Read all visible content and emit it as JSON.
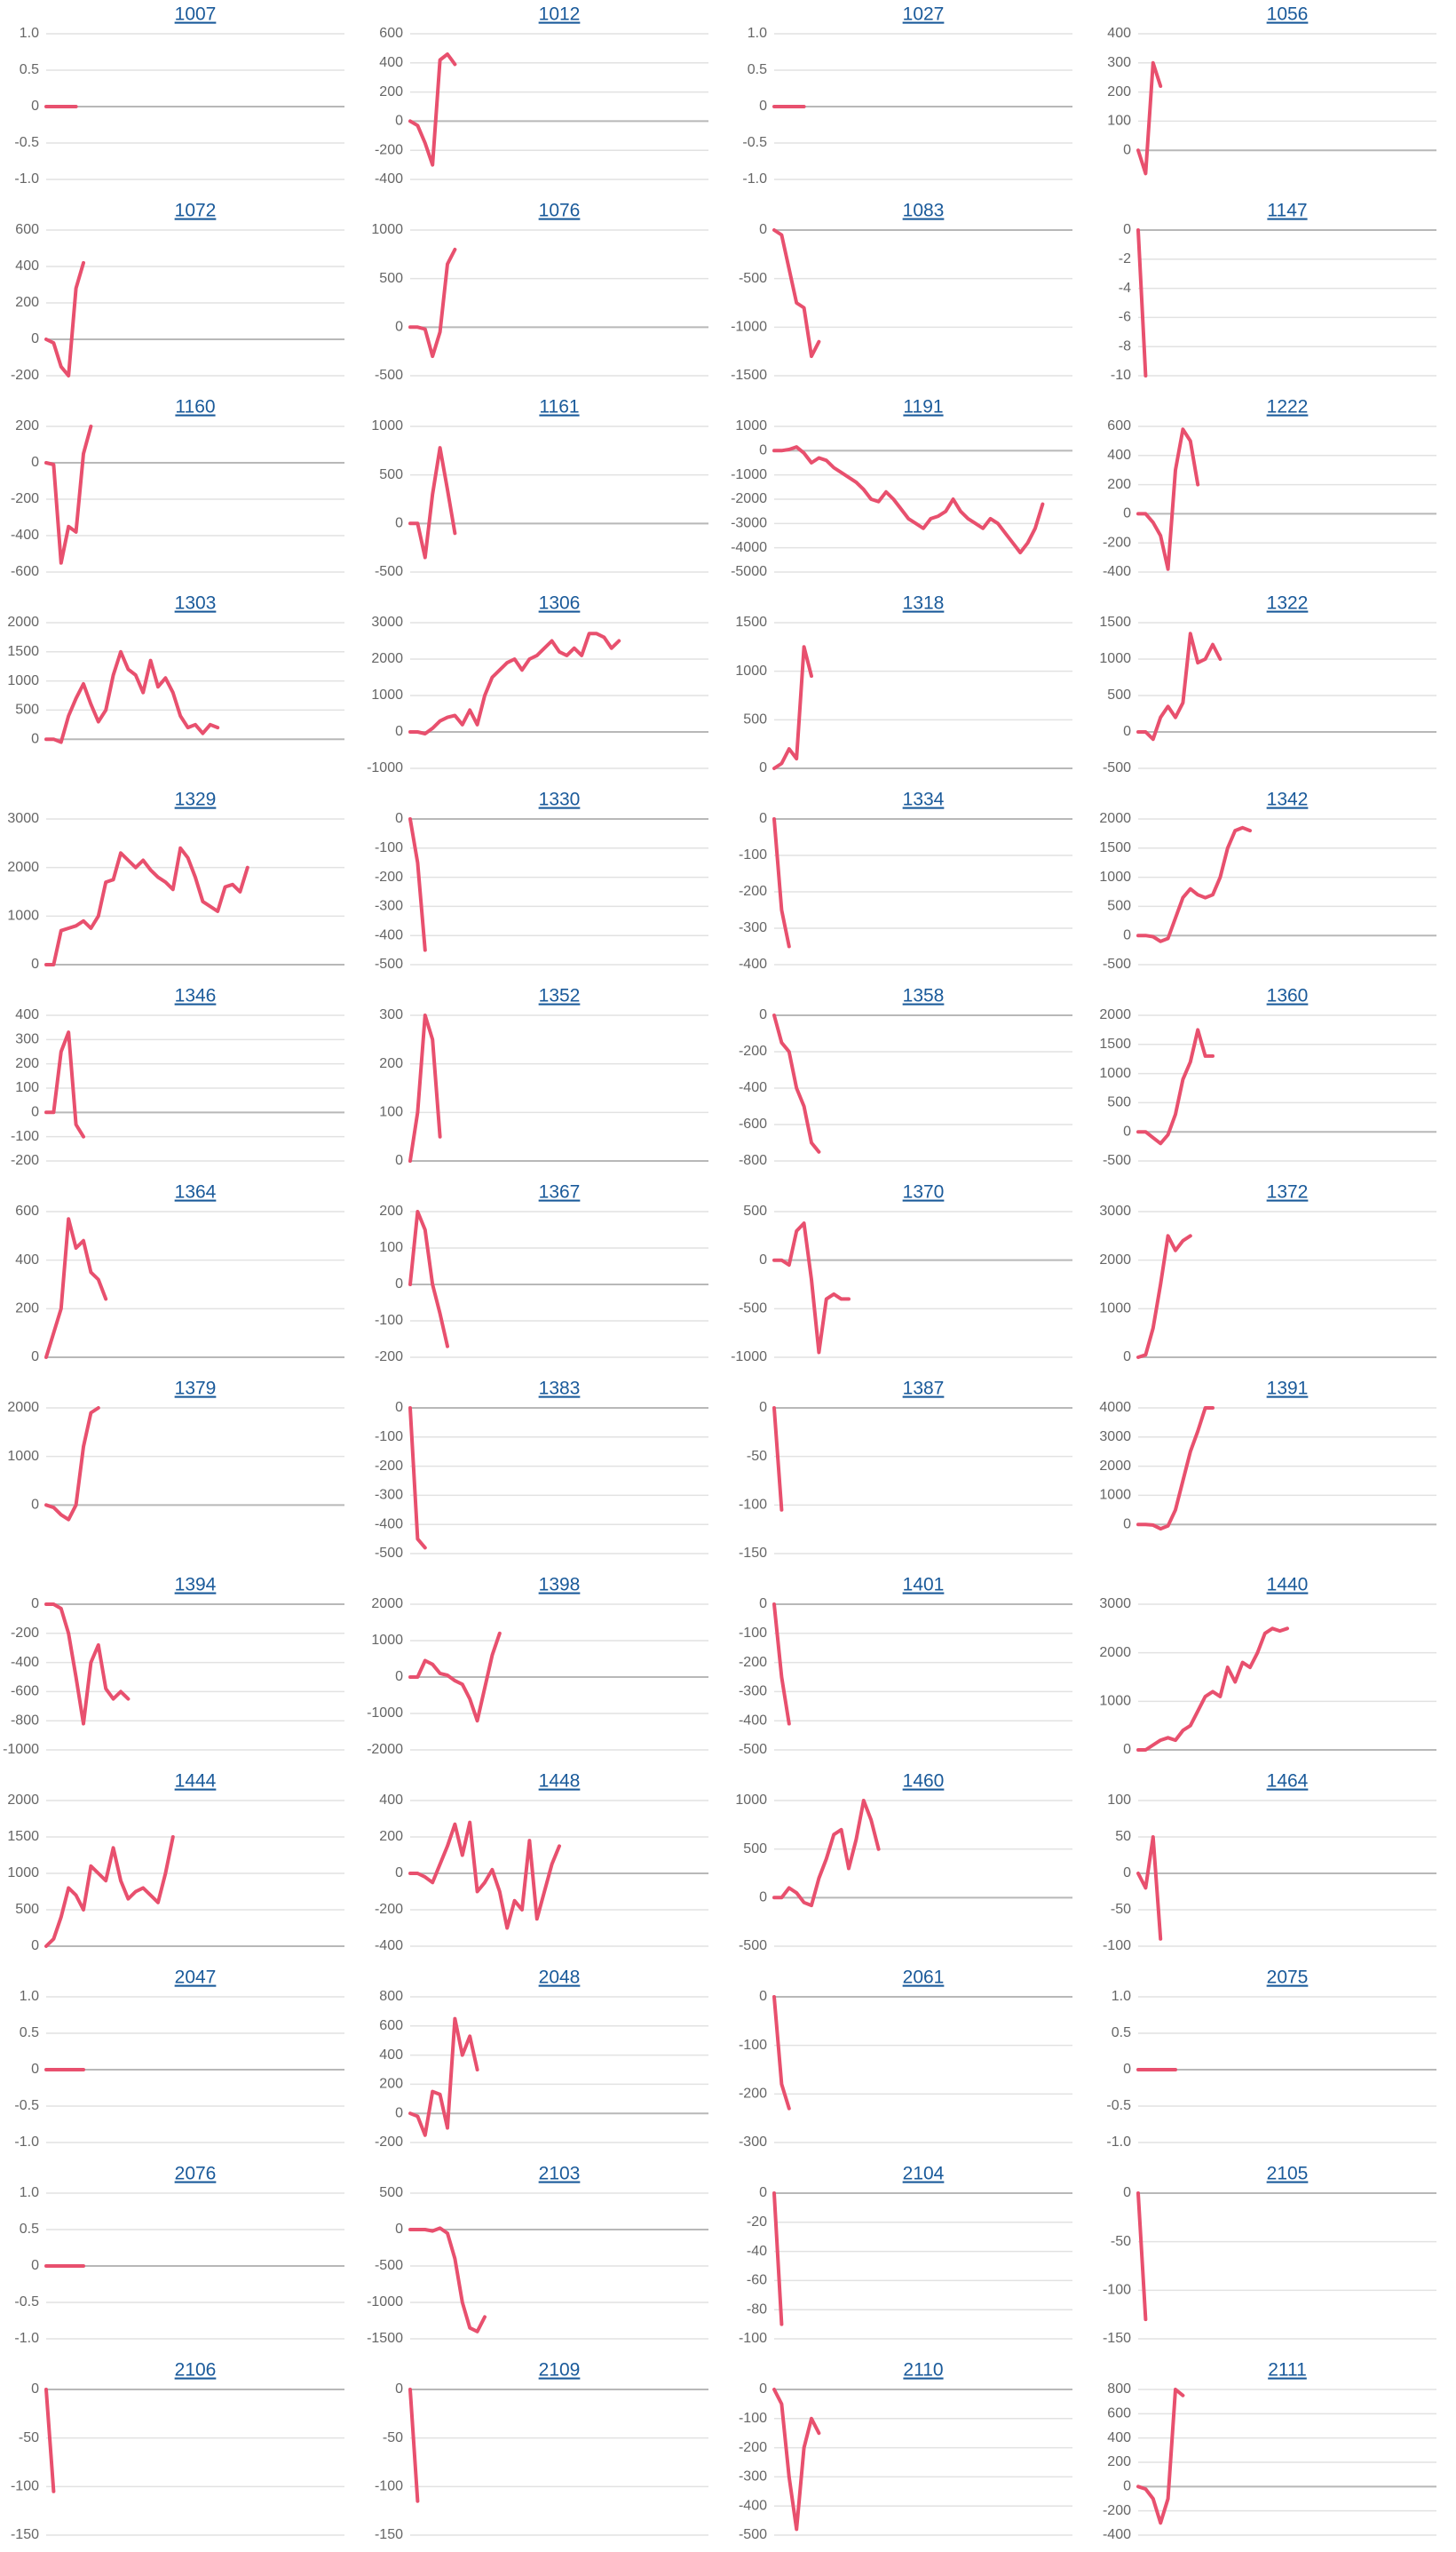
{
  "chart_data": [
    {
      "type": "line",
      "title": "1007",
      "color": "#e8506e",
      "ylim": [
        -1,
        1
      ],
      "yticks": [
        {
          "value": -1,
          "label": "-1.0"
        },
        -0.5,
        0,
        0.5,
        {
          "value": 1,
          "label": "1.0"
        }
      ],
      "values": [
        0,
        0,
        0,
        0,
        0
      ]
    },
    {
      "type": "line",
      "title": "1012",
      "color": "#e8506e",
      "ylim": [
        -400,
        600
      ],
      "yticks": [
        -400,
        -200,
        0,
        200,
        400,
        600
      ],
      "values": [
        0,
        -30,
        -150,
        -300,
        420,
        460,
        390
      ]
    },
    {
      "type": "line",
      "title": "1027",
      "color": "#e8506e",
      "ylim": [
        -1,
        1
      ],
      "yticks": [
        {
          "value": -1,
          "label": "-1.0"
        },
        -0.5,
        0,
        0.5,
        {
          "value": 1,
          "label": "1.0"
        }
      ],
      "values": [
        0,
        0,
        0,
        0,
        0
      ]
    },
    {
      "type": "line",
      "title": "1056",
      "color": "#e8506e",
      "ylim": [
        -100,
        400
      ],
      "yticks": [
        0,
        100,
        200,
        300,
        400
      ],
      "values": [
        0,
        -80,
        300,
        220
      ]
    },
    {
      "type": "line",
      "title": "1072",
      "color": "#e8506e",
      "ylim": [
        -200,
        600
      ],
      "yticks": [
        -200,
        0,
        200,
        400,
        600
      ],
      "values": [
        0,
        -20,
        -150,
        -200,
        280,
        420
      ]
    },
    {
      "type": "line",
      "title": "1076",
      "color": "#e8506e",
      "ylim": [
        -500,
        1000
      ],
      "yticks": [
        -500,
        0,
        500,
        1000
      ],
      "values": [
        0,
        0,
        -20,
        -300,
        -50,
        650,
        800
      ]
    },
    {
      "type": "line",
      "title": "1083",
      "color": "#e8506e",
      "ylim": [
        -1500,
        0
      ],
      "yticks": [
        -1500,
        -1000,
        -500,
        0
      ],
      "values": [
        0,
        -50,
        -400,
        -750,
        -800,
        -1300,
        -1150
      ]
    },
    {
      "type": "line",
      "title": "1147",
      "color": "#e8506e",
      "ylim": [
        -10,
        0
      ],
      "yticks": [
        -10,
        -8,
        -6,
        -4,
        -2,
        0
      ],
      "values": [
        0,
        -10
      ]
    },
    {
      "type": "line",
      "title": "1160",
      "color": "#e8506e",
      "ylim": [
        -600,
        200
      ],
      "yticks": [
        -600,
        -400,
        -200,
        0,
        200
      ],
      "values": [
        0,
        -10,
        -550,
        -350,
        -380,
        50,
        200
      ]
    },
    {
      "type": "line",
      "title": "1161",
      "color": "#e8506e",
      "ylim": [
        -500,
        1000
      ],
      "yticks": [
        -500,
        0,
        500,
        1000
      ],
      "values": [
        0,
        0,
        -350,
        300,
        780,
        350,
        -100
      ]
    },
    {
      "type": "line",
      "title": "1191",
      "color": "#e8506e",
      "ylim": [
        -5000,
        1000
      ],
      "yticks": [
        -5000,
        -4000,
        -3000,
        -2000,
        -1000,
        0,
        1000
      ],
      "values": [
        0,
        0,
        50,
        150,
        -100,
        -500,
        -300,
        -400,
        -700,
        -900,
        -1100,
        -1300,
        -1600,
        -2000,
        -2100,
        -1700,
        -2000,
        -2400,
        -2800,
        -3000,
        -3200,
        -2800,
        -2700,
        -2500,
        -2000,
        -2500,
        -2800,
        -3000,
        -3200,
        -2800,
        -3000,
        -3400,
        -3800,
        -4200,
        -3800,
        -3200,
        -2200
      ]
    },
    {
      "type": "line",
      "title": "1222",
      "color": "#e8506e",
      "ylim": [
        -400,
        600
      ],
      "yticks": [
        -400,
        -200,
        0,
        200,
        400,
        600
      ],
      "values": [
        0,
        0,
        -60,
        -150,
        -380,
        300,
        580,
        500,
        200
      ]
    },
    {
      "type": "line",
      "title": "1303",
      "color": "#e8506e",
      "ylim": [
        -500,
        2000
      ],
      "yticks": [
        0,
        500,
        1000,
        1500,
        2000
      ],
      "values": [
        0,
        0,
        -50,
        400,
        700,
        950,
        600,
        300,
        500,
        1100,
        1500,
        1200,
        1100,
        800,
        1350,
        900,
        1050,
        800,
        400,
        200,
        250,
        100,
        250,
        200
      ]
    },
    {
      "type": "line",
      "title": "1306",
      "color": "#e8506e",
      "ylim": [
        -1000,
        3000
      ],
      "yticks": [
        -1000,
        0,
        1000,
        2000,
        3000
      ],
      "values": [
        0,
        0,
        -50,
        100,
        300,
        400,
        450,
        200,
        600,
        200,
        1000,
        1500,
        1700,
        1900,
        2000,
        1700,
        2000,
        2100,
        2300,
        2500,
        2200,
        2100,
        2300,
        2100,
        2700,
        2700,
        2600,
        2300,
        2500
      ]
    },
    {
      "type": "line",
      "title": "1318",
      "color": "#e8506e",
      "ylim": [
        0,
        1500
      ],
      "yticks": [
        0,
        500,
        1000,
        1500
      ],
      "values": [
        0,
        50,
        200,
        100,
        1250,
        950
      ]
    },
    {
      "type": "line",
      "title": "1322",
      "color": "#e8506e",
      "ylim": [
        -500,
        1500
      ],
      "yticks": [
        -500,
        0,
        500,
        1000,
        1500
      ],
      "values": [
        0,
        0,
        -100,
        200,
        350,
        200,
        400,
        1350,
        950,
        1000,
        1200,
        1000
      ]
    },
    {
      "type": "line",
      "title": "1329",
      "color": "#e8506e",
      "ylim": [
        0,
        3000
      ],
      "yticks": [
        0,
        1000,
        2000,
        3000
      ],
      "values": [
        0,
        0,
        700,
        750,
        800,
        900,
        750,
        1000,
        1700,
        1750,
        2300,
        2150,
        2000,
        2150,
        1950,
        1800,
        1700,
        1550,
        2400,
        2200,
        1800,
        1300,
        1200,
        1100,
        1600,
        1650,
        1500,
        2000
      ]
    },
    {
      "type": "line",
      "title": "1330",
      "color": "#e8506e",
      "ylim": [
        -500,
        0
      ],
      "yticks": [
        -500,
        -400,
        -300,
        -200,
        -100,
        0
      ],
      "values": [
        0,
        -150,
        -450
      ]
    },
    {
      "type": "line",
      "title": "1334",
      "color": "#e8506e",
      "ylim": [
        -400,
        0
      ],
      "yticks": [
        -400,
        -300,
        -200,
        -100,
        0
      ],
      "values": [
        0,
        -250,
        -350
      ]
    },
    {
      "type": "line",
      "title": "1342",
      "color": "#e8506e",
      "ylim": [
        -500,
        2000
      ],
      "yticks": [
        -500,
        0,
        500,
        1000,
        1500,
        2000
      ],
      "values": [
        0,
        0,
        -20,
        -100,
        -50,
        300,
        650,
        800,
        700,
        650,
        700,
        1000,
        1500,
        1800,
        1850,
        1800
      ]
    },
    {
      "type": "line",
      "title": "1346",
      "color": "#e8506e",
      "ylim": [
        -200,
        400
      ],
      "yticks": [
        -200,
        -100,
        0,
        100,
        200,
        300,
        400
      ],
      "values": [
        0,
        0,
        250,
        330,
        -50,
        -100
      ]
    },
    {
      "type": "line",
      "title": "1352",
      "color": "#e8506e",
      "ylim": [
        0,
        300
      ],
      "yticks": [
        0,
        100,
        200,
        300
      ],
      "values": [
        0,
        100,
        300,
        250,
        50
      ]
    },
    {
      "type": "line",
      "title": "1358",
      "color": "#e8506e",
      "ylim": [
        -800,
        0
      ],
      "yticks": [
        -800,
        -600,
        -400,
        -200,
        0
      ],
      "values": [
        0,
        -150,
        -200,
        -400,
        -500,
        -700,
        -750
      ]
    },
    {
      "type": "line",
      "title": "1360",
      "color": "#e8506e",
      "ylim": [
        -500,
        2000
      ],
      "yticks": [
        -500,
        0,
        500,
        1000,
        1500,
        2000
      ],
      "values": [
        0,
        0,
        -100,
        -200,
        -50,
        300,
        900,
        1200,
        1750,
        1300,
        1300
      ]
    },
    {
      "type": "line",
      "title": "1364",
      "color": "#e8506e",
      "ylim": [
        0,
        600
      ],
      "yticks": [
        0,
        200,
        400,
        600
      ],
      "values": [
        0,
        100,
        200,
        570,
        450,
        480,
        350,
        320,
        240
      ]
    },
    {
      "type": "line",
      "title": "1367",
      "color": "#e8506e",
      "ylim": [
        -200,
        200
      ],
      "yticks": [
        -200,
        -100,
        0,
        100,
        200
      ],
      "values": [
        0,
        200,
        150,
        0,
        -80,
        -170
      ]
    },
    {
      "type": "line",
      "title": "1370",
      "color": "#e8506e",
      "ylim": [
        -1000,
        500
      ],
      "yticks": [
        -1000,
        -500,
        0,
        500
      ],
      "values": [
        0,
        0,
        -50,
        300,
        380,
        -200,
        -950,
        -400,
        -350,
        -400,
        -400
      ]
    },
    {
      "type": "line",
      "title": "1372",
      "color": "#e8506e",
      "ylim": [
        0,
        3000
      ],
      "yticks": [
        0,
        1000,
        2000,
        3000
      ],
      "values": [
        0,
        50,
        600,
        1500,
        2500,
        2200,
        2400,
        2500
      ]
    },
    {
      "type": "line",
      "title": "1379",
      "color": "#e8506e",
      "ylim": [
        -1000,
        2000
      ],
      "yticks": [
        0,
        1000,
        2000
      ],
      "values": [
        0,
        -50,
        -200,
        -300,
        0,
        1200,
        1900,
        2000
      ]
    },
    {
      "type": "line",
      "title": "1383",
      "color": "#e8506e",
      "ylim": [
        -500,
        0
      ],
      "yticks": [
        -500,
        -400,
        -300,
        -200,
        -100,
        0
      ],
      "values": [
        0,
        -450,
        -480
      ]
    },
    {
      "type": "line",
      "title": "1387",
      "color": "#e8506e",
      "ylim": [
        -150,
        0
      ],
      "yticks": [
        -150,
        -100,
        -50,
        0
      ],
      "values": [
        0,
        -105
      ]
    },
    {
      "type": "line",
      "title": "1391",
      "color": "#e8506e",
      "ylim": [
        -1000,
        4000
      ],
      "yticks": [
        0,
        1000,
        2000,
        3000,
        4000
      ],
      "values": [
        0,
        0,
        -20,
        -150,
        -50,
        500,
        1500,
        2500,
        3200,
        4000,
        4000
      ]
    },
    {
      "type": "line",
      "title": "1394",
      "color": "#e8506e",
      "ylim": [
        -1000,
        0
      ],
      "yticks": [
        -1000,
        -800,
        -600,
        -400,
        -200,
        0
      ],
      "values": [
        0,
        0,
        -30,
        -200,
        -500,
        -820,
        -400,
        -280,
        -580,
        -650,
        -600,
        -650
      ]
    },
    {
      "type": "line",
      "title": "1398",
      "color": "#e8506e",
      "ylim": [
        -2000,
        2000
      ],
      "yticks": [
        -2000,
        -1000,
        0,
        1000,
        2000
      ],
      "values": [
        0,
        0,
        450,
        350,
        100,
        50,
        -100,
        -200,
        -600,
        -1200,
        -300,
        600,
        1200
      ]
    },
    {
      "type": "line",
      "title": "1401",
      "color": "#e8506e",
      "ylim": [
        -500,
        0
      ],
      "yticks": [
        -500,
        -400,
        -300,
        -200,
        -100,
        0
      ],
      "values": [
        0,
        -250,
        -410
      ]
    },
    {
      "type": "line",
      "title": "1440",
      "color": "#e8506e",
      "ylim": [
        0,
        3000
      ],
      "yticks": [
        0,
        1000,
        2000,
        3000
      ],
      "values": [
        0,
        0,
        100,
        200,
        250,
        200,
        400,
        500,
        800,
        1100,
        1200,
        1100,
        1700,
        1400,
        1800,
        1700,
        2000,
        2400,
        2500,
        2450,
        2500
      ]
    },
    {
      "type": "line",
      "title": "1444",
      "color": "#e8506e",
      "ylim": [
        0,
        2000
      ],
      "yticks": [
        0,
        500,
        1000,
        1500,
        2000
      ],
      "values": [
        0,
        100,
        400,
        800,
        700,
        500,
        1100,
        1000,
        900,
        1350,
        900,
        650,
        750,
        800,
        700,
        600,
        1000,
        1500
      ]
    },
    {
      "type": "line",
      "title": "1448",
      "color": "#e8506e",
      "ylim": [
        -400,
        400
      ],
      "yticks": [
        -400,
        -200,
        0,
        200,
        400
      ],
      "values": [
        0,
        0,
        -20,
        -50,
        50,
        150,
        270,
        100,
        280,
        -100,
        -50,
        20,
        -100,
        -300,
        -150,
        -200,
        180,
        -250,
        -100,
        50,
        150
      ]
    },
    {
      "type": "line",
      "title": "1460",
      "color": "#e8506e",
      "ylim": [
        -500,
        1000
      ],
      "yticks": [
        -500,
        0,
        500,
        1000
      ],
      "values": [
        0,
        0,
        100,
        50,
        -50,
        -80,
        200,
        400,
        650,
        700,
        300,
        600,
        1000,
        800,
        500
      ]
    },
    {
      "type": "line",
      "title": "1464",
      "color": "#e8506e",
      "ylim": [
        -100,
        100
      ],
      "yticks": [
        -100,
        -50,
        0,
        50,
        100
      ],
      "values": [
        0,
        -20,
        50,
        -90
      ]
    },
    {
      "type": "line",
      "title": "2047",
      "color": "#e8506e",
      "ylim": [
        -1,
        1
      ],
      "yticks": [
        {
          "value": -1,
          "label": "-1.0"
        },
        -0.5,
        0,
        0.5,
        {
          "value": 1,
          "label": "1.0"
        }
      ],
      "values": [
        0,
        0,
        0,
        0,
        0,
        0
      ]
    },
    {
      "type": "line",
      "title": "2048",
      "color": "#e8506e",
      "ylim": [
        -200,
        800
      ],
      "yticks": [
        -200,
        0,
        200,
        400,
        600,
        800
      ],
      "values": [
        0,
        -20,
        -150,
        150,
        130,
        -100,
        650,
        400,
        530,
        300
      ]
    },
    {
      "type": "line",
      "title": "2061",
      "color": "#e8506e",
      "ylim": [
        -300,
        0
      ],
      "yticks": [
        -300,
        -200,
        -100,
        0
      ],
      "values": [
        0,
        -180,
        -230
      ]
    },
    {
      "type": "line",
      "title": "2075",
      "color": "#e8506e",
      "ylim": [
        -1,
        1
      ],
      "yticks": [
        {
          "value": -1,
          "label": "-1.0"
        },
        -0.5,
        0,
        0.5,
        {
          "value": 1,
          "label": "1.0"
        }
      ],
      "values": [
        0,
        0,
        0,
        0,
        0,
        0
      ]
    },
    {
      "type": "line",
      "title": "2076",
      "color": "#e8506e",
      "ylim": [
        -1,
        1
      ],
      "yticks": [
        {
          "value": -1,
          "label": "-1.0"
        },
        -0.5,
        0,
        0.5,
        {
          "value": 1,
          "label": "1.0"
        }
      ],
      "values": [
        0,
        0,
        0,
        0,
        0,
        0
      ]
    },
    {
      "type": "line",
      "title": "2103",
      "color": "#e8506e",
      "ylim": [
        -1500,
        500
      ],
      "yticks": [
        -1500,
        -1000,
        -500,
        0,
        500
      ],
      "values": [
        0,
        0,
        0,
        -20,
        20,
        -50,
        -400,
        -1000,
        -1350,
        -1400,
        -1200
      ]
    },
    {
      "type": "line",
      "title": "2104",
      "color": "#e8506e",
      "ylim": [
        -100,
        0
      ],
      "yticks": [
        -100,
        -80,
        -60,
        -40,
        -20,
        0
      ],
      "values": [
        0,
        -90
      ]
    },
    {
      "type": "line",
      "title": "2105",
      "color": "#e8506e",
      "ylim": [
        -150,
        0
      ],
      "yticks": [
        -150,
        -100,
        -50,
        0
      ],
      "values": [
        0,
        -130
      ]
    },
    {
      "type": "line",
      "title": "2106",
      "color": "#e8506e",
      "ylim": [
        -150,
        0
      ],
      "yticks": [
        -150,
        -100,
        -50,
        0
      ],
      "values": [
        0,
        -105
      ]
    },
    {
      "type": "line",
      "title": "2109",
      "color": "#e8506e",
      "ylim": [
        -150,
        0
      ],
      "yticks": [
        -150,
        -100,
        -50,
        0
      ],
      "values": [
        0,
        -115
      ]
    },
    {
      "type": "line",
      "title": "2110",
      "color": "#e8506e",
      "ylim": [
        -500,
        0
      ],
      "yticks": [
        -500,
        -400,
        -300,
        -200,
        -100,
        0
      ],
      "values": [
        0,
        -50,
        -300,
        -480,
        -200,
        -100,
        -150
      ]
    },
    {
      "type": "line",
      "title": "2111",
      "color": "#e8506e",
      "ylim": [
        -400,
        800
      ],
      "yticks": [
        -400,
        -200,
        0,
        200,
        400,
        600,
        800
      ],
      "values": [
        0,
        -20,
        -100,
        -300,
        -100,
        800,
        750
      ]
    }
  ]
}
